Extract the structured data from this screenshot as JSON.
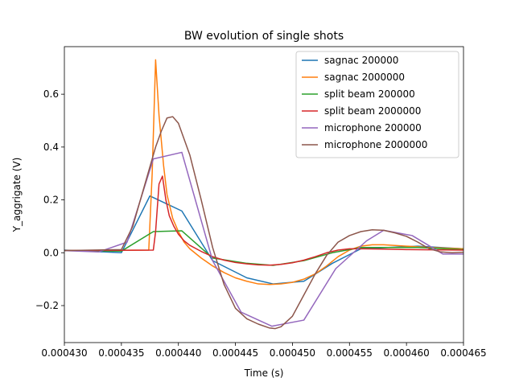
{
  "chart_data": {
    "type": "line",
    "title": "BW evolution of single shots",
    "xlabel": "Time (s)",
    "ylabel": "Y_aggrigate (V)",
    "xlim": [
      0.00043,
      0.000465
    ],
    "ylim": [
      -0.34,
      0.78
    ],
    "x_ticks": [
      0.00043,
      0.000435,
      0.00044,
      0.000445,
      0.00045,
      0.000455,
      0.00046,
      0.000465
    ],
    "x_tick_labels": [
      "0.000430",
      "0.000435",
      "0.000440",
      "0.000445",
      "0.000450",
      "0.000455",
      "0.000460",
      "0.000465"
    ],
    "y_ticks": [
      -0.2,
      0.0,
      0.2,
      0.4,
      0.6
    ],
    "y_tick_labels": [
      "−0.2",
      "0.0",
      "0.2",
      "0.4",
      "0.6"
    ],
    "grid": false,
    "legend_position": "top-right",
    "series": [
      {
        "name": "sagnac 200000",
        "color": "#1f77b4",
        "x": [
          0.00043,
          0.000435,
          0.0004375,
          0.0004403,
          0.000443,
          0.000446,
          0.0004483,
          0.000451,
          0.0004535,
          0.000456,
          0.000461,
          0.000465
        ],
        "y": [
          0.01,
          0.0,
          0.215,
          0.158,
          -0.03,
          -0.095,
          -0.118,
          -0.108,
          -0.04,
          0.015,
          0.025,
          0.015
        ]
      },
      {
        "name": "sagnac 2000000",
        "color": "#ff7f0e",
        "x": [
          0.00043,
          0.0004374,
          0.0004377,
          0.000438,
          0.0004383,
          0.0004387,
          0.000439,
          0.0004395,
          0.00044,
          0.0004405,
          0.000441,
          0.000442,
          0.000443,
          0.000444,
          0.000445,
          0.000446,
          0.000447,
          0.000448,
          0.000449,
          0.00045,
          0.000451,
          0.000452,
          0.000453,
          0.000454,
          0.000455,
          0.000456,
          0.000457,
          0.000458,
          0.00046,
          0.000462,
          0.000465
        ],
        "y": [
          0.008,
          0.01,
          0.3,
          0.73,
          0.52,
          0.33,
          0.22,
          0.13,
          0.08,
          0.04,
          0.015,
          -0.02,
          -0.05,
          -0.075,
          -0.095,
          -0.108,
          -0.118,
          -0.12,
          -0.118,
          -0.112,
          -0.1,
          -0.08,
          -0.05,
          -0.015,
          0.01,
          0.025,
          0.03,
          0.03,
          0.025,
          0.02,
          0.015
        ]
      },
      {
        "name": "split beam 200000",
        "color": "#2ca02c",
        "x": [
          0.00043,
          0.000435,
          0.0004378,
          0.0004403,
          0.000443,
          0.000446,
          0.0004483,
          0.000451,
          0.0004535,
          0.000456,
          0.000461,
          0.000465
        ],
        "y": [
          0.008,
          0.006,
          0.08,
          0.083,
          -0.02,
          -0.04,
          -0.048,
          -0.03,
          0.0,
          0.02,
          0.02,
          0.012
        ]
      },
      {
        "name": "split beam 2000000",
        "color": "#d62728",
        "x": [
          0.00043,
          0.0004378,
          0.000438,
          0.0004383,
          0.0004386,
          0.0004389,
          0.0004392,
          0.0004396,
          0.00044,
          0.0004405,
          0.000441,
          0.000442,
          0.000443,
          0.000444,
          0.000445,
          0.000446,
          0.000447,
          0.000448,
          0.000449,
          0.00045,
          0.000451,
          0.000452,
          0.000453,
          0.000454,
          0.000455,
          0.000456,
          0.000458,
          0.00046,
          0.000465
        ],
        "y": [
          0.008,
          0.01,
          0.08,
          0.26,
          0.29,
          0.2,
          0.14,
          0.1,
          0.07,
          0.045,
          0.028,
          0.005,
          -0.015,
          -0.028,
          -0.037,
          -0.042,
          -0.046,
          -0.047,
          -0.044,
          -0.038,
          -0.028,
          -0.015,
          0.0,
          0.01,
          0.015,
          0.015,
          0.014,
          0.012,
          0.01
        ]
      },
      {
        "name": "microphone 200000",
        "color": "#9467bd",
        "x": [
          0.00043,
          0.000433,
          0.0004355,
          0.0004378,
          0.0004403,
          0.000443,
          0.0004455,
          0.0004482,
          0.000451,
          0.0004538,
          0.0004565,
          0.000458,
          0.0004605,
          0.0004632,
          0.000465
        ],
        "y": [
          0.008,
          0.003,
          0.04,
          0.355,
          0.38,
          -0.03,
          -0.225,
          -0.278,
          -0.255,
          -0.06,
          0.045,
          0.085,
          0.065,
          -0.005,
          -0.005
        ]
      },
      {
        "name": "microphone 2000000",
        "color": "#8c564b",
        "x": [
          0.00043,
          0.000435,
          0.000436,
          0.000437,
          0.000438,
          0.0004385,
          0.000439,
          0.0004395,
          0.00044,
          0.000441,
          0.000442,
          0.000443,
          0.000444,
          0.000445,
          0.000446,
          0.000447,
          0.000448,
          0.0004485,
          0.000449,
          0.00045,
          0.000451,
          0.000452,
          0.000453,
          0.000454,
          0.000455,
          0.000456,
          0.000457,
          0.000458,
          0.000459,
          0.00046,
          0.000461,
          0.000462,
          0.000463,
          0.000464,
          0.000465
        ],
        "y": [
          0.008,
          0.012,
          0.1,
          0.25,
          0.4,
          0.46,
          0.51,
          0.515,
          0.49,
          0.37,
          0.2,
          0.02,
          -0.12,
          -0.21,
          -0.25,
          -0.27,
          -0.285,
          -0.287,
          -0.28,
          -0.24,
          -0.16,
          -0.08,
          -0.01,
          0.04,
          0.065,
          0.08,
          0.087,
          0.085,
          0.075,
          0.062,
          0.04,
          0.015,
          0.003,
          0.0,
          0.002
        ]
      }
    ]
  }
}
